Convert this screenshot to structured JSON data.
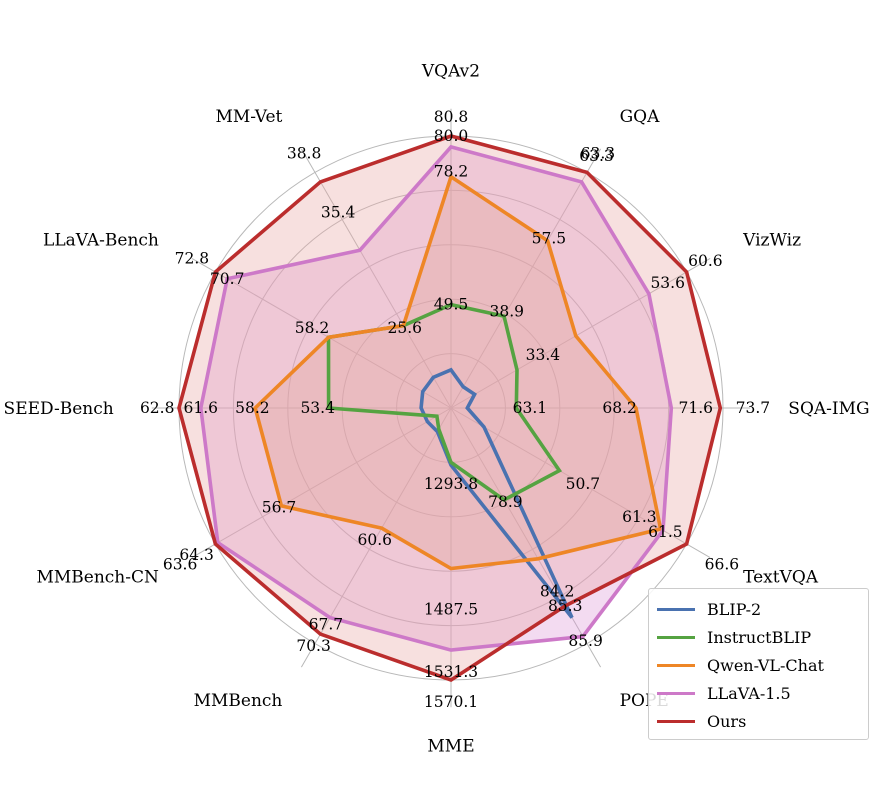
{
  "chart_data": {
    "type": "radar",
    "axes": [
      "VQAv2",
      "GQA",
      "VizWiz",
      "SQA-IMG",
      "TextVQA",
      "POPE",
      "MME",
      "MMBench",
      "MMBench-CN",
      "SEED-Bench",
      "LLaVA-Bench",
      "MM-Vet"
    ],
    "series": [
      {
        "name": "BLIP-2",
        "color": "#4a72b0",
        "fill": false,
        "values": [
          0.14,
          0.09,
          0.1,
          0.06,
          0.14,
          0.89,
          0.21,
          0.1,
          0.1,
          0.11,
          0.12,
          0.13
        ]
      },
      {
        "name": "InstructBLIP",
        "color": "#55a341",
        "fill": false,
        "values": [
          0.38,
          0.39,
          0.28,
          0.24,
          0.46,
          0.39,
          0.2,
          0.09,
          0.06,
          0.45,
          0.52,
          0.35
        ]
      },
      {
        "name": "Qwen-VL-Chat",
        "color": "#ee8626",
        "fill": true,
        "fill_color": "#e1a870",
        "values": [
          0.85,
          0.71,
          0.53,
          0.68,
          0.89,
          0.64,
          0.59,
          0.51,
          0.72,
          0.72,
          0.52,
          0.35
        ]
      },
      {
        "name": "LLaVA-1.5",
        "color": "#cd79c8",
        "fill": true,
        "fill_color": "#dd99d6",
        "values": [
          0.96,
          0.96,
          0.84,
          0.81,
          0.9,
          0.97,
          0.89,
          0.89,
          0.99,
          0.92,
          0.95,
          0.67
        ]
      },
      {
        "name": "Ours",
        "color": "#bb2d2d",
        "fill": true,
        "fill_color": "#e9a7a2",
        "values": [
          1.0,
          1.0,
          1.0,
          0.99,
          1.0,
          0.84,
          1.0,
          0.96,
          1.0,
          1.0,
          1.0,
          0.96
        ]
      }
    ],
    "value_labels": [
      {
        "text": "80.8",
        "axis": 0,
        "r": 1.07
      },
      {
        "text": "80.0",
        "axis": 0,
        "r": 1.0
      },
      {
        "text": "78.2",
        "axis": 0,
        "r": 0.87
      },
      {
        "text": "49.5",
        "axis": 0,
        "r": 0.38
      },
      {
        "text": "63.3",
        "axis": 1,
        "r": 1.08
      },
      {
        "text": "63.3",
        "axis": 1,
        "r": 1.07
      },
      {
        "text": "57.5",
        "axis": 1,
        "r": 0.72
      },
      {
        "text": "38.9",
        "axis": 1,
        "r": 0.41
      },
      {
        "text": "60.6",
        "axis": 2,
        "r": 1.08
      },
      {
        "text": "53.6",
        "axis": 2,
        "r": 0.92
      },
      {
        "text": "33.4",
        "axis": 2,
        "r": 0.39
      },
      {
        "text": "73.7",
        "axis": 3,
        "r": 1.11
      },
      {
        "text": "71.6",
        "axis": 3,
        "r": 0.9
      },
      {
        "text": "68.2",
        "axis": 3,
        "r": 0.62
      },
      {
        "text": "63.1",
        "axis": 3,
        "r": 0.29
      },
      {
        "text": "66.6",
        "axis": 4,
        "r": 1.15
      },
      {
        "text": "61.5",
        "axis": 4,
        "r": 0.91
      },
      {
        "text": "61.3",
        "axis": 4,
        "r": 0.8
      },
      {
        "text": "50.7",
        "axis": 4,
        "r": 0.56
      },
      {
        "text": "85.9",
        "axis": 5,
        "r": 0.99
      },
      {
        "text": "85.3",
        "axis": 5,
        "r": 0.84
      },
      {
        "text": "84.2",
        "axis": 5,
        "r": 0.78
      },
      {
        "text": "78.9",
        "axis": 5,
        "r": 0.4
      },
      {
        "text": "1570.1",
        "axis": 6,
        "r": 1.08
      },
      {
        "text": "1531.3",
        "axis": 6,
        "r": 0.97
      },
      {
        "text": "1487.5",
        "axis": 6,
        "r": 0.74
      },
      {
        "text": "1293.8",
        "axis": 6,
        "r": 0.28
      },
      {
        "text": "70.3",
        "axis": 7,
        "r": 1.01
      },
      {
        "text": "67.7",
        "axis": 7,
        "r": 0.92
      },
      {
        "text": "60.6",
        "axis": 7,
        "r": 0.56
      },
      {
        "text": "64.3",
        "axis": 8,
        "r": 1.08
      },
      {
        "text": "63.6",
        "axis": 8,
        "r": 1.15
      },
      {
        "text": "56.7",
        "axis": 8,
        "r": 0.73
      },
      {
        "text": "62.8",
        "axis": 9,
        "r": 1.08
      },
      {
        "text": "61.6",
        "axis": 9,
        "r": 0.92
      },
      {
        "text": "58.2",
        "axis": 9,
        "r": 0.73
      },
      {
        "text": "53.4",
        "axis": 9,
        "r": 0.49
      },
      {
        "text": "72.8",
        "axis": 10,
        "r": 1.1
      },
      {
        "text": "70.7",
        "axis": 10,
        "r": 0.95
      },
      {
        "text": "58.2",
        "axis": 10,
        "r": 0.59
      },
      {
        "text": "38.8",
        "axis": 11,
        "r": 1.08
      },
      {
        "text": "35.4",
        "axis": 11,
        "r": 0.83
      },
      {
        "text": "25.6",
        "axis": 11,
        "r": 0.34
      }
    ],
    "grid": true,
    "rings": 5,
    "legend_position": "bottom-right"
  },
  "legend": {
    "items": [
      {
        "label": "BLIP-2",
        "color": "#4a72b0"
      },
      {
        "label": "InstructBLIP",
        "color": "#55a341"
      },
      {
        "label": "Qwen-VL-Chat",
        "color": "#ee8626"
      },
      {
        "label": "LLaVA-1.5",
        "color": "#cd79c8"
      },
      {
        "label": "Ours",
        "color": "#bb2d2d"
      }
    ]
  }
}
